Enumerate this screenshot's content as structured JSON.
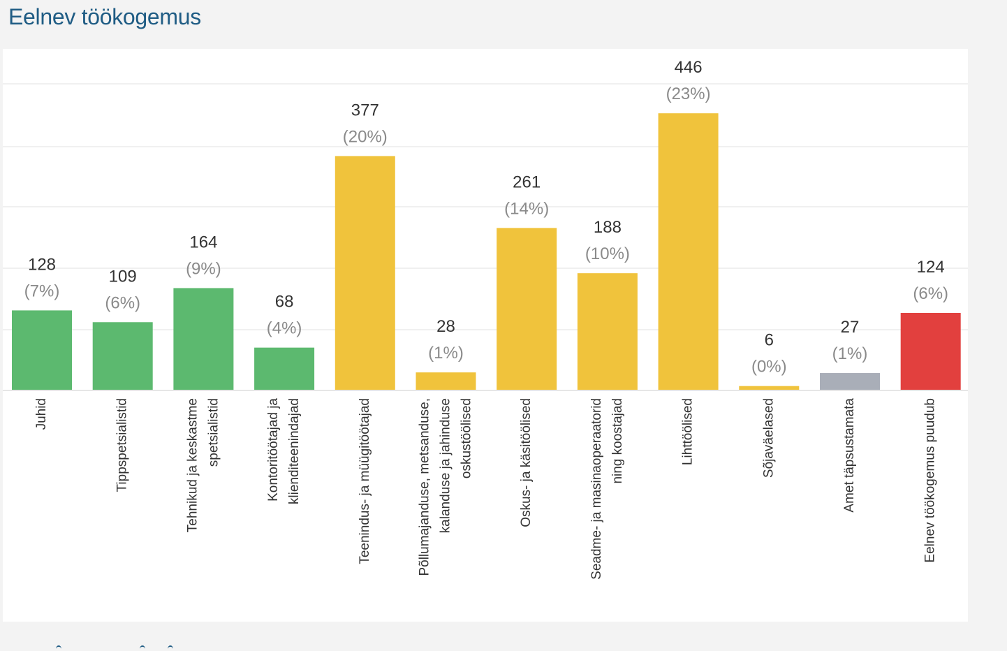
{
  "section": {
    "title": "Eelnev töökogemus"
  },
  "chart_data": {
    "type": "bar",
    "title": "Eelnev töökogemus",
    "categories": [
      [
        "Juhid"
      ],
      [
        "Tippspetsialistid"
      ],
      [
        "Tehnikud ja keskastme",
        "spetsialistid"
      ],
      [
        "Kontoritöötajad ja",
        "klienditeenindajad"
      ],
      [
        "Teenindus- ja müügitöötajad"
      ],
      [
        "Põllumajanduse, metsanduse,",
        "kalanduse ja jahinduse",
        "oskustöölised"
      ],
      [
        "Oskus- ja käsitöölised"
      ],
      [
        "Seadme- ja masinaoperaatorid",
        "ning koostajad"
      ],
      [
        "Lihttöölised"
      ],
      [
        "Sõjaväelased"
      ],
      [
        "Amet täpsustamata"
      ],
      [
        "Eelnev töökogemus puudub"
      ]
    ],
    "values": [
      128,
      109,
      164,
      68,
      377,
      28,
      261,
      188,
      446,
      6,
      27,
      124
    ],
    "percent_labels": [
      "(7%)",
      "(6%)",
      "(9%)",
      "(4%)",
      "(20%)",
      "(1%)",
      "(14%)",
      "(10%)",
      "(23%)",
      "(0%)",
      "(1%)",
      "(6%)"
    ],
    "bar_colors": [
      "#5cb96f",
      "#5cb96f",
      "#5cb96f",
      "#5cb96f",
      "#f0c33c",
      "#f0c33c",
      "#f0c33c",
      "#f0c33c",
      "#f0c33c",
      "#f0c33c",
      "#a9aeb8",
      "#e2403e"
    ],
    "ylim": [
      0,
      500
    ],
    "grid": true,
    "legend": "none"
  }
}
